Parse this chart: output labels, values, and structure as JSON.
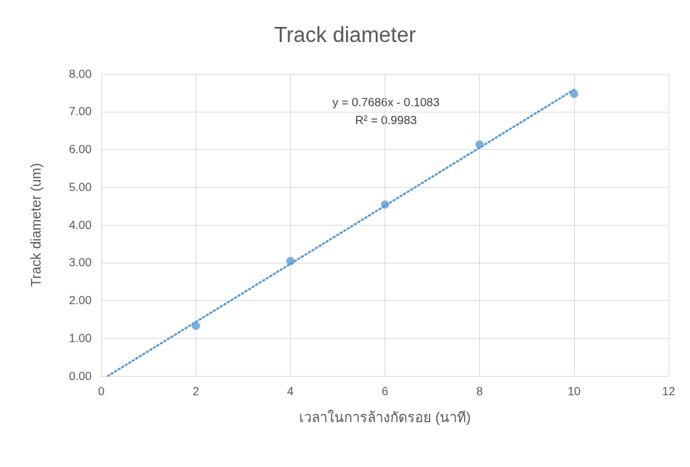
{
  "chart_data": {
    "type": "scatter",
    "title": "Track diameter",
    "xlabel": "เวลาในการล้างกัดรอย (นาที)",
    "ylabel": "Track diameter (um)",
    "x": [
      2,
      4,
      6,
      8,
      10
    ],
    "series": [
      {
        "color": "#5b9bd5",
        "values": [
          1.33,
          3.04,
          4.54,
          6.13,
          7.47
        ],
        "marker": "circle"
      },
      {
        "type": "line",
        "color": "#5b9bd5",
        "x": [
          0.14,
          10
        ],
        "values": [
          0,
          7.58
        ],
        "marker": "none",
        "line_style": "dotted"
      }
    ],
    "xlim": [
      0,
      12
    ],
    "xticks": [
      0,
      2,
      4,
      6,
      8,
      10,
      12
    ],
    "ylim": [
      0,
      8
    ],
    "yticks": [
      {
        "value": 0,
        "label": "0.00"
      },
      {
        "value": 1,
        "label": "1.00"
      },
      {
        "value": 2,
        "label": "2.00"
      },
      {
        "value": 3,
        "label": "3.00"
      },
      {
        "value": 4,
        "label": "4.00"
      },
      {
        "value": 5,
        "label": "5.00"
      },
      {
        "value": 6,
        "label": "6.00"
      },
      {
        "value": 7,
        "label": "7.00"
      },
      {
        "value": 8,
        "label": "8.00"
      }
    ],
    "annotations": [
      "y = 0.7686x - 0.1083",
      "R² = 0.9983"
    ],
    "grid": true
  }
}
